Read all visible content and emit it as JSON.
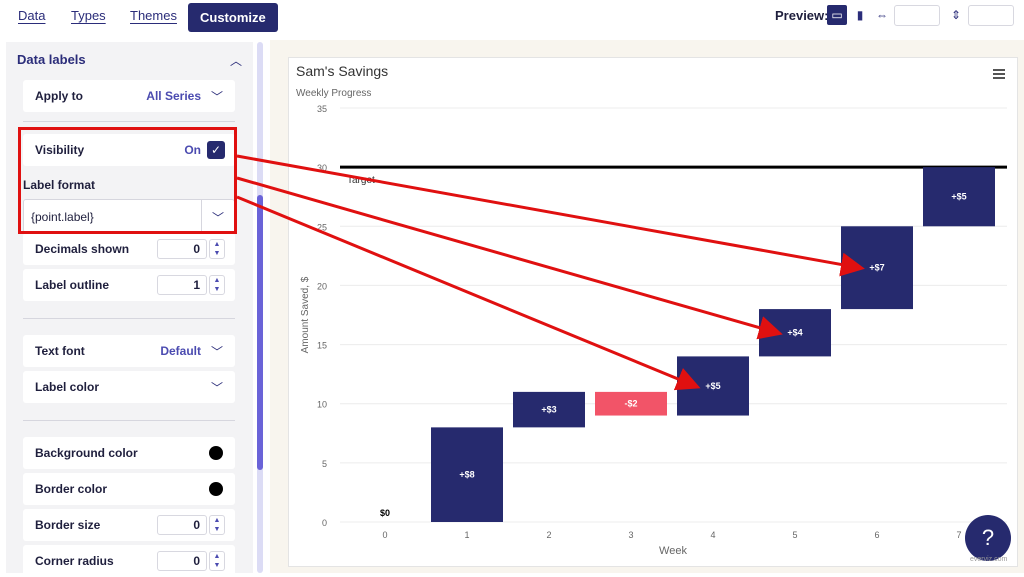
{
  "tabs": [
    {
      "label": "Data"
    },
    {
      "label": "Types"
    },
    {
      "label": "Themes"
    },
    {
      "label": "Customize"
    }
  ],
  "preview": {
    "label": "Preview:",
    "width_value": "",
    "height_value": ""
  },
  "sidebar": {
    "section_title": "Data labels",
    "apply_to": {
      "label": "Apply to",
      "value": "All Series"
    },
    "visibility": {
      "label": "Visibility",
      "value": "On"
    },
    "label_format": {
      "label": "Label format",
      "value": "{point.label}"
    },
    "decimals": {
      "label": "Decimals shown",
      "value": "0"
    },
    "outline": {
      "label": "Label outline",
      "value": "1"
    },
    "text_font": {
      "label": "Text font",
      "value": "Default"
    },
    "label_color": {
      "label": "Label color"
    },
    "background_color": {
      "label": "Background color",
      "color": "#000000"
    },
    "border_color": {
      "label": "Border color",
      "color": "#000000"
    },
    "border_size": {
      "label": "Border size",
      "value": "0"
    },
    "corner_radius": {
      "label": "Corner radius",
      "value": "0"
    }
  },
  "help": {
    "label": "?"
  },
  "credits": "everviz.com",
  "chart_data": {
    "type": "waterfall",
    "title": "Sam's Savings",
    "subtitle": "Weekly Progress",
    "xlabel": "Week",
    "ylabel": "Amount Saved, $",
    "ylim": [
      0,
      35
    ],
    "yticks": [
      0,
      5,
      10,
      15,
      20,
      25,
      30,
      35
    ],
    "categories": [
      "0",
      "1",
      "2",
      "3",
      "4",
      "5",
      "6",
      "7"
    ],
    "values": [
      0,
      8,
      3,
      -2,
      5,
      4,
      7,
      5
    ],
    "labels": [
      "$0",
      "+$8",
      "+$3",
      "-$2",
      "+$5",
      "+$4",
      "+$7",
      "+$5"
    ],
    "colors": {
      "positive": "#262a6e",
      "negative": "#f25468"
    },
    "plot_line": {
      "value": 30,
      "label": "Target"
    },
    "grid": true
  }
}
